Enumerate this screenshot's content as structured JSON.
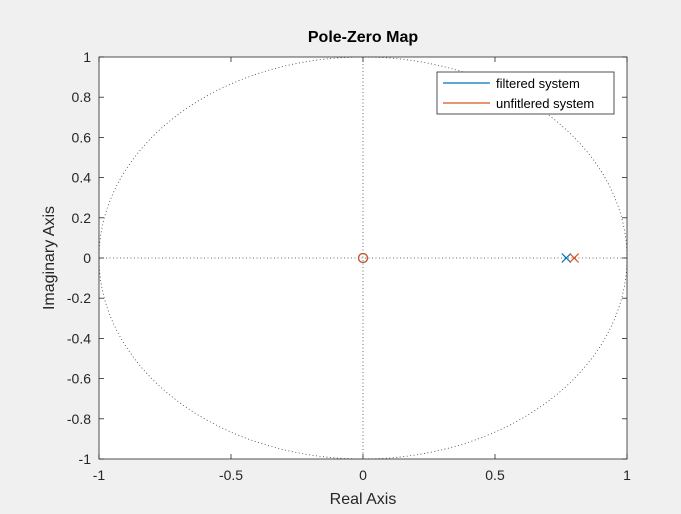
{
  "chart_data": {
    "type": "scatter",
    "title": "Pole-Zero Map",
    "xlabel": "Real Axis",
    "ylabel": "Imaginary Axis",
    "xlim": [
      -1,
      1
    ],
    "ylim": [
      -1,
      1
    ],
    "xticks": [
      -1,
      -0.5,
      0,
      0.5,
      1
    ],
    "xtick_labels": [
      "-1",
      "-0.5",
      "0",
      "0.5",
      "1"
    ],
    "yticks": [
      -1,
      -0.8,
      -0.6,
      -0.4,
      -0.2,
      0,
      0.2,
      0.4,
      0.6,
      0.8,
      1
    ],
    "ytick_labels": [
      "-1",
      "-0.8",
      "-0.6",
      "-0.4",
      "-0.2",
      "0",
      "0.2",
      "0.4",
      "0.6",
      "0.8",
      "1"
    ],
    "grid": false,
    "unit_circle": true,
    "legend_position": "top-right",
    "series": [
      {
        "name": "filtered system",
        "color": "#0072BD",
        "poles": [
          [
            0.77,
            0
          ]
        ],
        "zeros": [
          [
            0,
            0
          ]
        ]
      },
      {
        "name": "unfitlered system",
        "color": "#D95319",
        "poles": [
          [
            0.8,
            0
          ]
        ],
        "zeros": [
          [
            0,
            0
          ]
        ]
      }
    ]
  }
}
